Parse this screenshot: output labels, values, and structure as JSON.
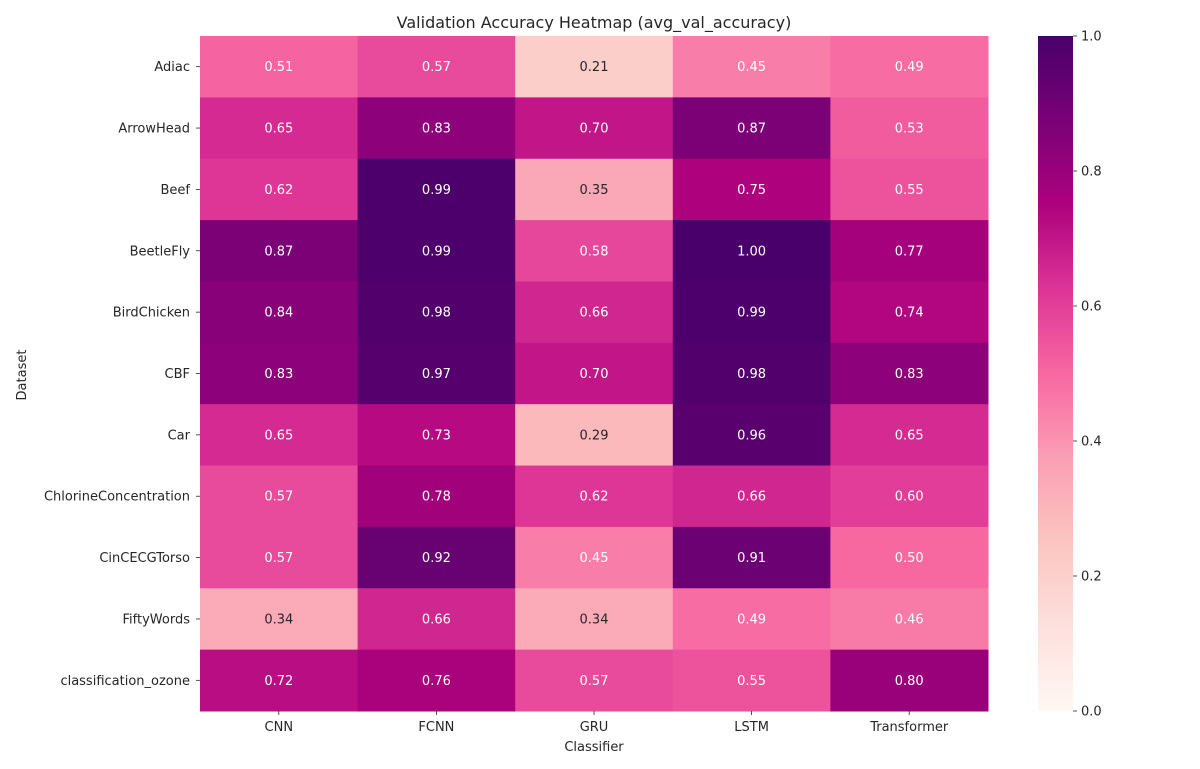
{
  "chart_data": {
    "type": "heatmap",
    "title": "Validation Accuracy Heatmap (avg_val_accuracy)",
    "xlabel": "Classifier",
    "ylabel": "Dataset",
    "columns": [
      "CNN",
      "FCNN",
      "GRU",
      "LSTM",
      "Transformer"
    ],
    "rows": [
      "Adiac",
      "ArrowHead",
      "Beef",
      "BeetleFly",
      "BirdChicken",
      "CBF",
      "Car",
      "ChlorineConcentration",
      "CinCECGTorso",
      "FiftyWords",
      "classification_ozone"
    ],
    "values": [
      [
        0.51,
        0.57,
        0.21,
        0.45,
        0.49
      ],
      [
        0.65,
        0.83,
        0.7,
        0.87,
        0.53
      ],
      [
        0.62,
        0.99,
        0.35,
        0.75,
        0.55
      ],
      [
        0.87,
        0.99,
        0.58,
        1.0,
        0.77
      ],
      [
        0.84,
        0.98,
        0.66,
        0.99,
        0.74
      ],
      [
        0.83,
        0.97,
        0.7,
        0.98,
        0.83
      ],
      [
        0.65,
        0.73,
        0.29,
        0.96,
        0.65
      ],
      [
        0.57,
        0.78,
        0.62,
        0.66,
        0.6
      ],
      [
        0.57,
        0.92,
        0.45,
        0.91,
        0.5
      ],
      [
        0.34,
        0.66,
        0.34,
        0.49,
        0.46
      ],
      [
        0.72,
        0.76,
        0.57,
        0.55,
        0.8
      ]
    ],
    "cell_labels": [
      [
        "0.51",
        "0.57",
        "0.21",
        "0.45",
        "0.49"
      ],
      [
        "0.65",
        "0.83",
        "0.70",
        "0.87",
        "0.53"
      ],
      [
        "0.62",
        "0.99",
        "0.35",
        "0.75",
        "0.55"
      ],
      [
        "0.87",
        "0.99",
        "0.58",
        "1.00",
        "0.77"
      ],
      [
        "0.84",
        "0.98",
        "0.66",
        "0.99",
        "0.74"
      ],
      [
        "0.83",
        "0.97",
        "0.70",
        "0.98",
        "0.83"
      ],
      [
        "0.65",
        "0.73",
        "0.29",
        "0.96",
        "0.65"
      ],
      [
        "0.57",
        "0.78",
        "0.62",
        "0.66",
        "0.60"
      ],
      [
        "0.57",
        "0.92",
        "0.45",
        "0.91",
        "0.50"
      ],
      [
        "0.34",
        "0.66",
        "0.34",
        "0.49",
        "0.46"
      ],
      [
        "0.72",
        "0.76",
        "0.57",
        "0.55",
        "0.80"
      ]
    ],
    "colormap": "RdPu",
    "vmin": 0.0,
    "vmax": 1.0,
    "colorbar": {
      "ticks": [
        0.0,
        0.2,
        0.4,
        0.6,
        0.8,
        1.0
      ],
      "tick_labels": [
        "0.0",
        "0.2",
        "0.4",
        "0.6",
        "0.8",
        "1.0"
      ]
    },
    "colormap_stops": [
      "#fff7f3",
      "#fde0dd",
      "#fcc5c0",
      "#fa9fb5",
      "#f768a1",
      "#dd3497",
      "#ae017e",
      "#7a0177",
      "#49006a"
    ],
    "text_color_dark": "#262626",
    "text_color_light": "#ffffff"
  }
}
